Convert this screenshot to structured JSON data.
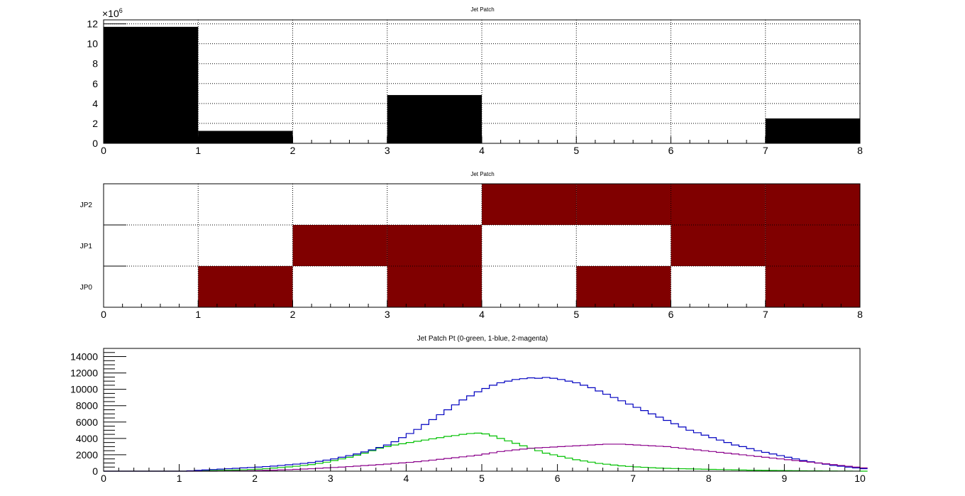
{
  "chart_data": [
    {
      "type": "bar",
      "title": "Jet Patch",
      "xlabel": "",
      "ylabel": "",
      "xlim": [
        0,
        8
      ],
      "ylim": [
        0,
        12.4
      ],
      "y_exponent_label": "×10",
      "y_exponent_power": "6",
      "x_ticks": [
        "0",
        "1",
        "2",
        "3",
        "4",
        "5",
        "6",
        "7",
        "8"
      ],
      "y_ticks": [
        "0",
        "2",
        "4",
        "6",
        "8",
        "10",
        "12"
      ],
      "bins": [
        {
          "x0": 0,
          "x1": 1,
          "value": 11.7
        },
        {
          "x0": 1,
          "x1": 2,
          "value": 1.25
        },
        {
          "x0": 2,
          "x1": 3,
          "value": 0
        },
        {
          "x0": 3,
          "x1": 4,
          "value": 4.85
        },
        {
          "x0": 4,
          "x1": 5,
          "value": 0
        },
        {
          "x0": 5,
          "x1": 6,
          "value": 0
        },
        {
          "x0": 6,
          "x1": 7,
          "value": 0
        },
        {
          "x0": 7,
          "x1": 8,
          "value": 2.5
        }
      ],
      "grid": true,
      "color": "#000000"
    },
    {
      "type": "heatmap",
      "title": "Jet Patch",
      "xlabel": "",
      "ylabel": "",
      "xlim": [
        0,
        8
      ],
      "x_ticks": [
        "0",
        "1",
        "2",
        "3",
        "4",
        "5",
        "6",
        "7",
        "8"
      ],
      "rows": [
        "JP0",
        "JP1",
        "JP2"
      ],
      "cells": [
        [
          0,
          1,
          0,
          1,
          0,
          1,
          0,
          1
        ],
        [
          0,
          0,
          1,
          1,
          0,
          0,
          1,
          1
        ],
        [
          0,
          0,
          0,
          0,
          1,
          1,
          1,
          1
        ]
      ],
      "grid": true,
      "color": "#800000"
    },
    {
      "type": "line",
      "title": "Jet Patch Pt (0-green, 1-blue, 2-magenta)",
      "xlabel": "",
      "ylabel": "",
      "xlim": [
        0,
        10
      ],
      "ylim": [
        0,
        15000
      ],
      "x_ticks": [
        "0",
        "1",
        "2",
        "3",
        "4",
        "5",
        "6",
        "7",
        "8",
        "9",
        "10"
      ],
      "y_ticks": [
        "0",
        "2000",
        "4000",
        "6000",
        "8000",
        "10000",
        "12000",
        "14000"
      ],
      "bin_width": 0.1,
      "grid": false,
      "series": [
        {
          "color": "#00c000",
          "values": [
            0,
            0,
            0,
            0,
            0,
            0,
            0,
            0,
            0,
            0,
            0,
            10,
            30,
            50,
            80,
            100,
            120,
            140,
            170,
            200,
            250,
            300,
            380,
            450,
            520,
            600,
            700,
            800,
            950,
            1100,
            1300,
            1500,
            1700,
            1950,
            2200,
            2500,
            2800,
            3000,
            3200,
            3350,
            3500,
            3650,
            3800,
            3950,
            4100,
            4250,
            4350,
            4500,
            4600,
            4650,
            4550,
            4300,
            4000,
            3700,
            3400,
            3100,
            2800,
            2500,
            2200,
            2000,
            1800,
            1600,
            1400,
            1250,
            1100,
            950,
            850,
            750,
            650,
            580,
            520,
            470,
            420,
            380,
            350,
            320,
            300,
            280,
            260,
            240,
            220,
            200,
            180,
            160,
            140,
            120,
            110,
            100,
            90,
            80,
            70,
            60,
            50,
            40,
            30,
            25,
            20,
            15,
            10,
            5,
            0
          ]
        },
        {
          "color": "#0000c0",
          "values": [
            0,
            0,
            0,
            0,
            0,
            0,
            0,
            0,
            0,
            0,
            0,
            50,
            100,
            150,
            200,
            250,
            300,
            350,
            400,
            450,
            500,
            560,
            620,
            700,
            780,
            860,
            950,
            1050,
            1200,
            1350,
            1500,
            1700,
            1900,
            2100,
            2350,
            2600,
            2900,
            3200,
            3600,
            4100,
            4600,
            5100,
            5700,
            6300,
            6900,
            7500,
            8100,
            8700,
            9200,
            9700,
            10100,
            10500,
            10800,
            11000,
            11200,
            11300,
            11400,
            11350,
            11450,
            11350,
            11200,
            11000,
            10800,
            10500,
            10200,
            9800,
            9400,
            9000,
            8600,
            8200,
            7800,
            7400,
            7000,
            6600,
            6200,
            5800,
            5400,
            5000,
            4700,
            4400,
            4100,
            3800,
            3500,
            3200,
            3000,
            2750,
            2500,
            2300,
            2100,
            1900,
            1700,
            1500,
            1300,
            1150,
            1000,
            850,
            700,
            600,
            500,
            400,
            300
          ]
        },
        {
          "color": "#8b008b",
          "values": [
            0,
            0,
            0,
            0,
            0,
            0,
            0,
            0,
            0,
            0,
            0,
            0,
            0,
            0,
            0,
            10,
            20,
            30,
            40,
            60,
            80,
            100,
            120,
            150,
            180,
            220,
            260,
            300,
            350,
            400,
            450,
            500,
            560,
            620,
            680,
            740,
            800,
            870,
            940,
            1010,
            1080,
            1160,
            1250,
            1350,
            1450,
            1550,
            1650,
            1750,
            1850,
            1950,
            2100,
            2250,
            2400,
            2500,
            2600,
            2700,
            2800,
            2850,
            2900,
            2950,
            3000,
            3050,
            3100,
            3150,
            3200,
            3250,
            3300,
            3300,
            3300,
            3250,
            3200,
            3150,
            3100,
            3050,
            3000,
            2900,
            2800,
            2700,
            2600,
            2500,
            2400,
            2300,
            2200,
            2100,
            2000,
            1900,
            1800,
            1700,
            1600,
            1500,
            1400,
            1300,
            1200,
            1100,
            1000,
            900,
            800,
            700,
            600,
            500,
            400
          ]
        }
      ]
    }
  ]
}
